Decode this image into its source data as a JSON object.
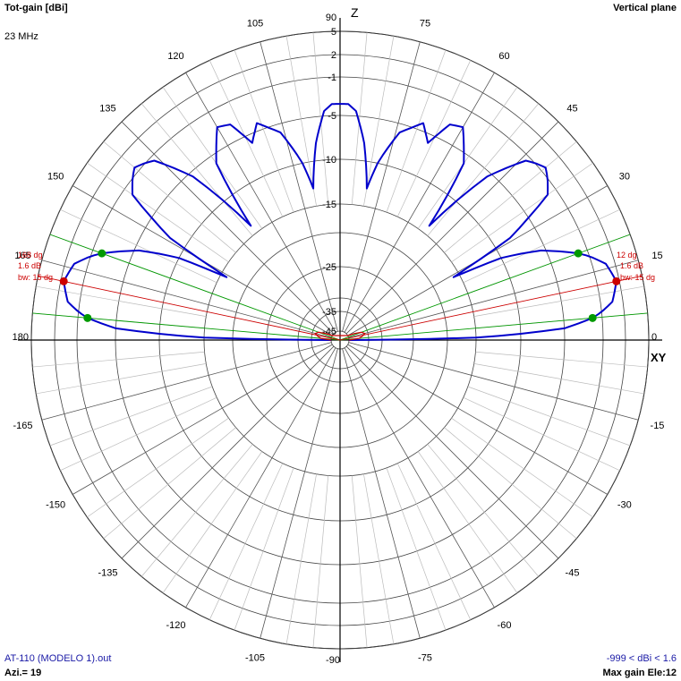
{
  "header": {
    "title": "Tot-gain [dBi]",
    "frequency": "23 MHz",
    "plane": "Vertical plane"
  },
  "footer": {
    "file": "AT-110 (MODELO 1).out",
    "azimuth": "Azi.= 19",
    "range": "-999 < dBi < 1.6",
    "max_gain": "Max gain Ele:12"
  },
  "colors": {
    "pattern": "#0000cc",
    "beamwidth_lines": "#009900",
    "maxgain_lines": "#cc0000",
    "grid": "#000000",
    "secondary_pattern": "#cc0000"
  },
  "chart_data": {
    "type": "polar",
    "angle_labels": [
      "90",
      "75",
      "60",
      "45",
      "30",
      "15",
      "0",
      "-15",
      "-30",
      "-45",
      "-60",
      "-75",
      "-90",
      "-105",
      "-120",
      "-135",
      "-150",
      "-165",
      "180",
      "165",
      "150",
      "135",
      "120",
      "105"
    ],
    "angle_label_values": [
      90,
      75,
      60,
      45,
      30,
      15,
      0,
      -15,
      -30,
      -45,
      -60,
      -75,
      -90,
      -105,
      -120,
      -135,
      -150,
      -165,
      180,
      165,
      150,
      135,
      120,
      105
    ],
    "axis_labels": {
      "vertical": "Z",
      "horizontal": "XY"
    },
    "radial_tick_labels": [
      "5",
      "2",
      "-1",
      "-5",
      "-10",
      "-15",
      "-25",
      "-35",
      "-45"
    ],
    "radial_ticks": [
      5,
      2,
      -1,
      -5,
      -10,
      -15,
      -25,
      -35,
      -45
    ],
    "right_annotations": [
      "12 dg",
      "1.6 dB",
      "bw: 15 dg"
    ],
    "left_annotations": [
      "168 dg",
      "1.6 dB",
      "bw: 15 dg"
    ],
    "max_gain_dbi": 1.6,
    "max_gain_elevation_deg": 12,
    "beamwidth_deg": 15,
    "beam_edges_deg": [
      5,
      20
    ],
    "pattern_right": [
      [
        0,
        -45
      ],
      [
        1,
        -15
      ],
      [
        3,
        -5
      ],
      [
        5,
        -2
      ],
      [
        8,
        0.6
      ],
      [
        12,
        1.6
      ],
      [
        16,
        0.8
      ],
      [
        20,
        -2
      ],
      [
        24,
        -5.5
      ],
      [
        27,
        -10
      ],
      [
        29,
        -16
      ],
      [
        31,
        -8
      ],
      [
        35,
        -2
      ],
      [
        40,
        -0.3
      ],
      [
        44,
        -1.5
      ],
      [
        48,
        -5.5
      ],
      [
        52,
        -14
      ],
      [
        55,
        -6
      ],
      [
        60,
        -2.8
      ],
      [
        63,
        -3.2
      ],
      [
        66,
        -6
      ],
      [
        69,
        -4.2
      ],
      [
        74,
        -6
      ],
      [
        78,
        -10
      ],
      [
        80,
        -13
      ],
      [
        83,
        -8
      ],
      [
        86,
        -4.5
      ],
      [
        88,
        -3.8
      ],
      [
        90,
        -3.8
      ]
    ],
    "pattern_left": [
      [
        90,
        -3.8
      ],
      [
        92,
        -3.8
      ],
      [
        94,
        -4.5
      ],
      [
        97,
        -8
      ],
      [
        100,
        -13
      ],
      [
        102,
        -10
      ],
      [
        106,
        -6
      ],
      [
        111,
        -4.2
      ],
      [
        114,
        -6
      ],
      [
        117,
        -3.2
      ],
      [
        120,
        -2.8
      ],
      [
        125,
        -6
      ],
      [
        128,
        -14
      ],
      [
        132,
        -5.5
      ],
      [
        136,
        -1.5
      ],
      [
        140,
        -0.3
      ],
      [
        145,
        -2
      ],
      [
        149,
        -8
      ],
      [
        151,
        -16
      ],
      [
        153,
        -10
      ],
      [
        156,
        -5.5
      ],
      [
        160,
        -2
      ],
      [
        164,
        0.8
      ],
      [
        168,
        1.6
      ],
      [
        172,
        0.6
      ],
      [
        175,
        -2
      ],
      [
        177,
        -5
      ],
      [
        179,
        -15
      ],
      [
        180,
        -45
      ]
    ],
    "secondary_pattern": [
      [
        0,
        -45
      ],
      [
        5,
        -40
      ],
      [
        10,
        -38
      ],
      [
        15,
        -36.5
      ],
      [
        20,
        -38
      ],
      [
        25,
        -42
      ],
      [
        30,
        -45
      ]
    ]
  }
}
